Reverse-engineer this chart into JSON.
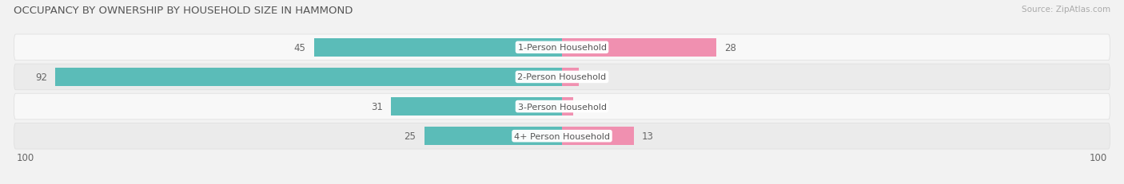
{
  "title": "OCCUPANCY BY OWNERSHIP BY HOUSEHOLD SIZE IN HAMMOND",
  "source": "Source: ZipAtlas.com",
  "categories": [
    "1-Person Household",
    "2-Person Household",
    "3-Person Household",
    "4+ Person Household"
  ],
  "owner_values": [
    45,
    92,
    31,
    25
  ],
  "renter_values": [
    28,
    3,
    2,
    13
  ],
  "max_scale": 100,
  "owner_color": "#5bbcb8",
  "renter_color": "#f090b0",
  "bg_color": "#f2f2f2",
  "row_bg_light": "#f8f8f8",
  "row_bg_dark": "#ebebeb",
  "label_bg_color": "#ffffff",
  "title_fontsize": 9.5,
  "source_fontsize": 7.5,
  "bar_label_fontsize": 8.5,
  "axis_label_fontsize": 8.5,
  "legend_fontsize": 8.5,
  "category_fontsize": 8
}
